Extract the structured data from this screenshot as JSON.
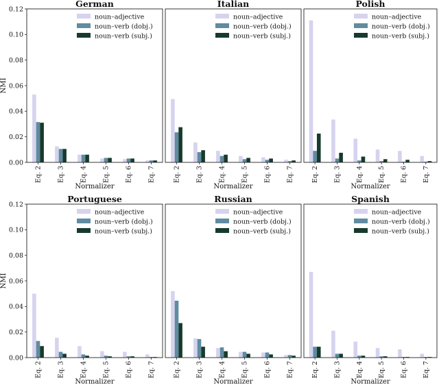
{
  "figure": {
    "ylabel": "NMI",
    "xlabel": "Normalizer",
    "legend": [
      "noun–adjective",
      "noun–verb (dobj.)",
      "noun–verb (subj.)"
    ],
    "colors": [
      "#d6d3ef",
      "#5f8ca0",
      "#173a2c"
    ]
  },
  "chart_data": [
    {
      "type": "bar",
      "title": "German",
      "categories": [
        "Eq. 2",
        "Eq. 3",
        "Eq. 4",
        "Eq. 5",
        "Eq. 6",
        "Eq. 7"
      ],
      "ylim": [
        0,
        0.12
      ],
      "yticks": [
        "0.00",
        "0.02",
        "0.04",
        "0.06",
        "0.08",
        "0.10",
        "0.12"
      ],
      "legend_position": "top-right",
      "series": [
        {
          "name": "noun–adjective",
          "values": [
            0.053,
            0.0125,
            0.006,
            0.003,
            0.0025,
            0.0015
          ]
        },
        {
          "name": "noun–verb (dobj.)",
          "values": [
            0.0315,
            0.0105,
            0.006,
            0.0035,
            0.003,
            0.0015
          ]
        },
        {
          "name": "noun–verb (subj.)",
          "values": [
            0.031,
            0.0105,
            0.006,
            0.0035,
            0.003,
            0.0015
          ]
        }
      ]
    },
    {
      "type": "bar",
      "title": "Italian",
      "categories": [
        "Eq. 2",
        "Eq. 3",
        "Eq. 4",
        "Eq. 5",
        "Eq. 6",
        "Eq. 7"
      ],
      "ylim": [
        0,
        0.12
      ],
      "legend_position": "top-right",
      "series": [
        {
          "name": "noun–adjective",
          "values": [
            0.0495,
            0.0155,
            0.009,
            0.005,
            0.004,
            0.002
          ]
        },
        {
          "name": "noun–verb (dobj.)",
          "values": [
            0.0235,
            0.008,
            0.005,
            0.0025,
            0.002,
            0.001
          ]
        },
        {
          "name": "noun–verb (subj.)",
          "values": [
            0.0275,
            0.0095,
            0.006,
            0.0035,
            0.003,
            0.0015
          ]
        }
      ]
    },
    {
      "type": "bar",
      "title": "Polish",
      "categories": [
        "Eq. 2",
        "Eq. 3",
        "Eq. 4",
        "Eq. 5",
        "Eq. 6",
        "Eq. 7"
      ],
      "ylim": [
        0,
        0.12
      ],
      "legend_position": "top-right",
      "series": [
        {
          "name": "noun–adjective",
          "values": [
            0.111,
            0.0335,
            0.0185,
            0.01,
            0.009,
            0.005
          ]
        },
        {
          "name": "noun–verb (dobj.)",
          "values": [
            0.009,
            0.003,
            0.0015,
            0.001,
            0.0005,
            0.0005
          ]
        },
        {
          "name": "noun–verb (subj.)",
          "values": [
            0.0225,
            0.0075,
            0.0045,
            0.0025,
            0.002,
            0.001
          ]
        }
      ]
    },
    {
      "type": "bar",
      "title": "Portuguese",
      "categories": [
        "Eq. 2",
        "Eq. 3",
        "Eq. 4",
        "Eq. 5",
        "Eq. 6",
        "Eq. 7"
      ],
      "ylim": [
        0,
        0.12
      ],
      "legend_position": "top-right",
      "series": [
        {
          "name": "noun–adjective",
          "values": [
            0.05,
            0.0155,
            0.009,
            0.005,
            0.0045,
            0.0025
          ]
        },
        {
          "name": "noun–verb (dobj.)",
          "values": [
            0.013,
            0.0045,
            0.0025,
            0.0015,
            0.001,
            0.0005
          ]
        },
        {
          "name": "noun–verb (subj.)",
          "values": [
            0.009,
            0.003,
            0.0015,
            0.001,
            0.001,
            0.0005
          ]
        }
      ]
    },
    {
      "type": "bar",
      "title": "Russian",
      "categories": [
        "Eq. 2",
        "Eq. 3",
        "Eq. 4",
        "Eq. 5",
        "Eq. 6",
        "Eq. 7"
      ],
      "ylim": [
        0,
        0.12
      ],
      "legend_position": "top-right",
      "series": [
        {
          "name": "noun–adjective",
          "values": [
            0.052,
            0.015,
            0.0075,
            0.0045,
            0.004,
            0.002
          ]
        },
        {
          "name": "noun–verb (dobj.)",
          "values": [
            0.0445,
            0.0145,
            0.008,
            0.0045,
            0.004,
            0.002
          ]
        },
        {
          "name": "noun–verb (subj.)",
          "values": [
            0.027,
            0.0085,
            0.005,
            0.003,
            0.0025,
            0.0015
          ]
        }
      ]
    },
    {
      "type": "bar",
      "title": "Spanish",
      "categories": [
        "Eq. 2",
        "Eq. 3",
        "Eq. 4",
        "Eq. 5",
        "Eq. 6",
        "Eq. 7"
      ],
      "ylim": [
        0,
        0.12
      ],
      "legend_position": "top-right",
      "series": [
        {
          "name": "noun–adjective",
          "values": [
            0.067,
            0.021,
            0.0125,
            0.0075,
            0.0065,
            0.003
          ]
        },
        {
          "name": "noun–verb (dobj.)",
          "values": [
            0.0085,
            0.003,
            0.0015,
            0.001,
            0.0005,
            0.0005
          ]
        },
        {
          "name": "noun–verb (subj.)",
          "values": [
            0.0085,
            0.003,
            0.0015,
            0.001,
            0.0005,
            0.0005
          ]
        }
      ]
    }
  ]
}
